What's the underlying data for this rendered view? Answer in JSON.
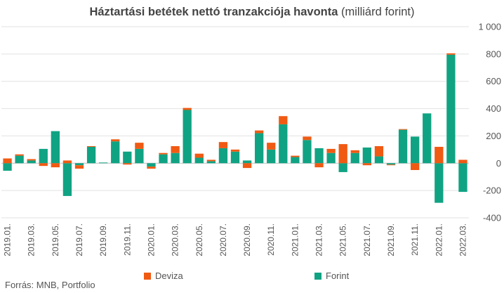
{
  "chart_data": {
    "type": "bar",
    "stacked": true,
    "title": "Háztartási betétek nettó tranzakciója havonta",
    "subtitle": "(milliárd forint)",
    "ylim": [
      -400,
      1000
    ],
    "yticks": [
      -400,
      -200,
      0,
      200,
      400,
      600,
      800,
      1000
    ],
    "ytick_labels": [
      "-400",
      "-200",
      "0",
      "200",
      "400",
      "600",
      "800",
      "1 000"
    ],
    "x_tick_labels": [
      "2019.01.",
      "2019.03.",
      "2019.05.",
      "2019.07.",
      "2019.09.",
      "2019.11.",
      "2020.01.",
      "2020.03.",
      "2020.05.",
      "2020.07.",
      "2020.09.",
      "2020.11.",
      "2021.01.",
      "2021.03.",
      "2021.05.",
      "2021.07.",
      "2021.09.",
      "2021.11.",
      "2022.01.",
      "2022.03."
    ],
    "grid": true,
    "legend_position": "bottom",
    "series": [
      {
        "name": "Forint",
        "color": "#10a383",
        "values": [
          -55,
          55,
          20,
          105,
          235,
          -240,
          -15,
          120,
          5,
          160,
          85,
          105,
          -25,
          65,
          75,
          390,
          40,
          15,
          110,
          85,
          20,
          220,
          100,
          285,
          45,
          170,
          110,
          75,
          -65,
          75,
          115,
          50,
          -10,
          245,
          195,
          365,
          -290,
          795,
          -210
        ]
      },
      {
        "name": "Deviza",
        "color": "#f05a13",
        "values": [
          35,
          10,
          10,
          -20,
          -30,
          20,
          -25,
          5,
          0,
          15,
          -10,
          45,
          -15,
          10,
          50,
          15,
          30,
          10,
          45,
          15,
          -35,
          20,
          50,
          60,
          10,
          25,
          -30,
          30,
          140,
          20,
          -15,
          75,
          -5,
          5,
          -50,
          0,
          120,
          10,
          25
        ]
      }
    ],
    "source": "Forrás: MNB, Portfolio"
  }
}
